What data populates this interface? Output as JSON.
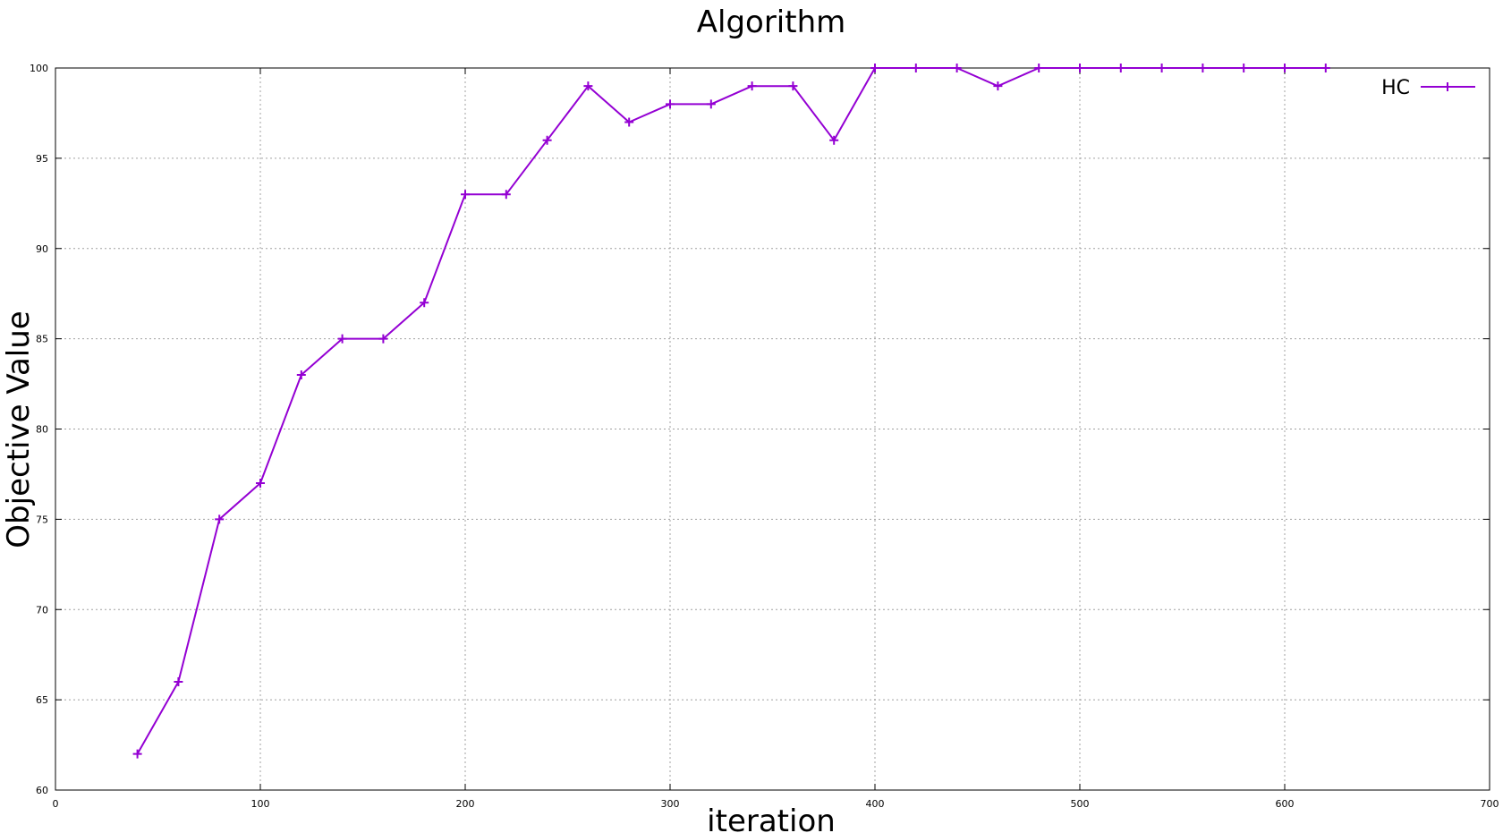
{
  "chart_data": {
    "type": "line",
    "title": "Algorithm",
    "xlabel": "iteration",
    "ylabel": "Objective Value",
    "xlim": [
      0,
      700
    ],
    "ylim": [
      60,
      100
    ],
    "xticks": [
      0,
      100,
      200,
      300,
      400,
      500,
      600,
      700
    ],
    "yticks": [
      60,
      65,
      70,
      75,
      80,
      85,
      90,
      95,
      100
    ],
    "grid": true,
    "legend_position": "top-right",
    "series": [
      {
        "name": "HC",
        "color": "#9400d3",
        "marker": "plus",
        "x": [
          40,
          60,
          80,
          100,
          120,
          140,
          160,
          180,
          200,
          220,
          240,
          260,
          280,
          300,
          320,
          340,
          360,
          380,
          400,
          420,
          440,
          460,
          480,
          500,
          520,
          540,
          560,
          580,
          600,
          620
        ],
        "y": [
          62,
          66,
          75,
          77,
          83,
          85,
          85,
          87,
          93,
          93,
          96,
          99,
          97,
          98,
          98,
          99,
          99,
          96,
          100,
          100,
          100,
          99,
          100,
          100,
          100,
          100,
          100,
          100,
          100,
          100
        ]
      }
    ]
  }
}
